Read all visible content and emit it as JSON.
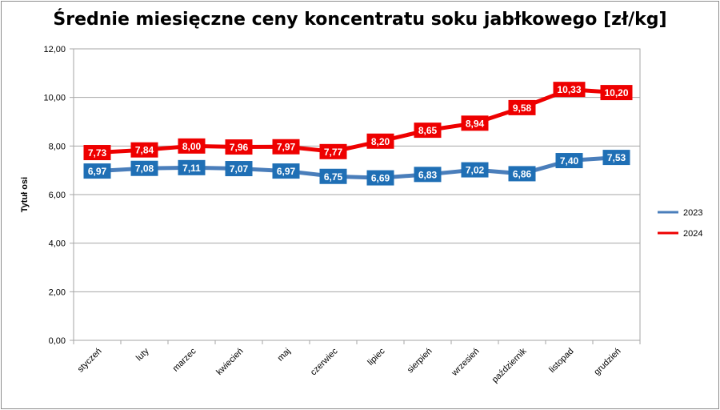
{
  "chart_data": {
    "type": "line",
    "title": "Średnie miesięczne ceny koncentratu soku jabłkowego [zł/kg]",
    "ylabel": "Tytuł osi",
    "xlabel": "",
    "ylim": [
      0,
      12
    ],
    "yticks": [
      "0,00",
      "2,00",
      "4,00",
      "6,00",
      "8,00",
      "10,00",
      "12,00"
    ],
    "categories": [
      "styczeń",
      "luty",
      "marzec",
      "kwiecień",
      "maj",
      "czerwiec",
      "lipiec",
      "sierpień",
      "wrzesień",
      "październik",
      "listopad",
      "grudzień"
    ],
    "legend_position": "right",
    "grid": "horizontal",
    "series": [
      {
        "name": "2023",
        "color": "#4a7ebb",
        "label_color": "#1f6fb5",
        "values": [
          6.97,
          7.08,
          7.11,
          7.07,
          6.97,
          6.75,
          6.69,
          6.83,
          7.02,
          6.86,
          7.4,
          7.53
        ],
        "labels": [
          "6,97",
          "7,08",
          "7,11",
          "7,07",
          "6,97",
          "6,75",
          "6,69",
          "6,83",
          "7,02",
          "6,86",
          "7,40",
          "7,53"
        ]
      },
      {
        "name": "2024",
        "color": "#ee0000",
        "label_color": "#ee0000",
        "values": [
          7.73,
          7.84,
          8.0,
          7.96,
          7.97,
          7.77,
          8.2,
          8.65,
          8.94,
          9.58,
          10.33,
          10.2
        ],
        "labels": [
          "7,73",
          "7,84",
          "8,00",
          "7,96",
          "7,97",
          "7,77",
          "8,20",
          "8,65",
          "8,94",
          "9,58",
          "10,33",
          "10,20"
        ]
      }
    ]
  }
}
